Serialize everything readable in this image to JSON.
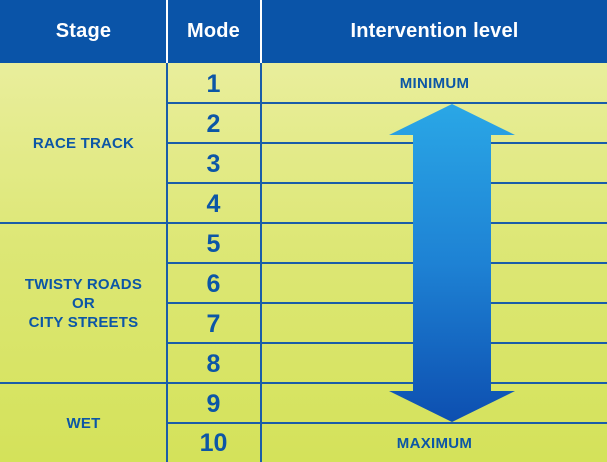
{
  "header": {
    "stage": "Stage",
    "mode": "Mode",
    "intervention": "Intervention level"
  },
  "stages": [
    {
      "label_lines": [
        "RACE TRACK"
      ],
      "modes": [
        "1",
        "2",
        "3",
        "4"
      ]
    },
    {
      "label_lines": [
        "TWISTY ROADS",
        "OR",
        "CITY STREETS"
      ],
      "modes": [
        "5",
        "6",
        "7",
        "8"
      ]
    },
    {
      "label_lines": [
        "WET"
      ],
      "modes": [
        "9",
        "10"
      ]
    }
  ],
  "modes": [
    "1",
    "2",
    "3",
    "4",
    "5",
    "6",
    "7",
    "8",
    "9",
    "10"
  ],
  "intervention": {
    "min_label": "MINIMUM",
    "max_label": "MAXIMUM"
  },
  "colors": {
    "header_bg": "#0a54a8",
    "text_blue": "#0c56a6",
    "grid_line": "#1a5da8",
    "body_top": "#e9ee9c",
    "body_bottom": "#d4e25a",
    "arrow_light": "#2aa7e6",
    "arrow_dark": "#0d4fb0"
  }
}
